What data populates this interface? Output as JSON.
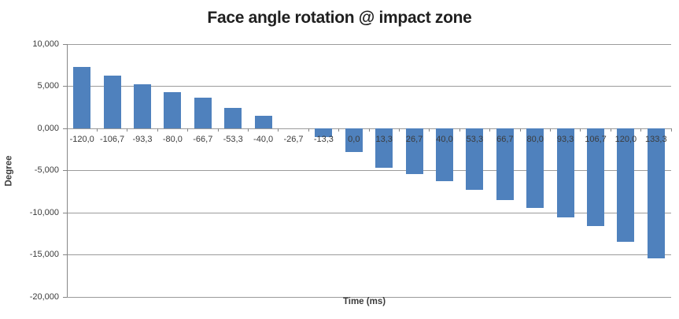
{
  "chart_data": {
    "type": "bar",
    "title": "Face angle rotation @ impact zone",
    "xlabel": "Time (ms)",
    "ylabel": "Degree",
    "categories": [
      "-120,0",
      "-106,7",
      "-93,3",
      "-80,0",
      "-66,7",
      "-53,3",
      "-40,0",
      "-26,7",
      "-13,3",
      "0,0",
      "13,3",
      "26,7",
      "40,0",
      "53,3",
      "66,7",
      "80,0",
      "93,3",
      "106,7",
      "120,0",
      "133,3"
    ],
    "values": [
      7.3,
      6.3,
      5.2,
      4.3,
      3.6,
      2.4,
      1.5,
      0.0,
      -1.0,
      -2.8,
      -4.7,
      -5.4,
      -6.3,
      -7.3,
      -8.5,
      -9.4,
      -10.6,
      -11.6,
      -13.5,
      -15.4
    ],
    "ylim": [
      -20,
      10
    ],
    "ytick_values": [
      10,
      5,
      0,
      -5,
      -10,
      -15,
      -20
    ],
    "ytick_labels": [
      "10,000",
      "5,000",
      "0,000",
      "-5,000",
      "-10,000",
      "-15,000",
      "-20,000"
    ],
    "grid": true,
    "legend": "none",
    "bar_color": "#4F81BD",
    "gridline_color": "#9B9B9B",
    "axis_color": "#868686",
    "title_color": "#1F1F1F",
    "label_color": "#3B3B3B"
  }
}
